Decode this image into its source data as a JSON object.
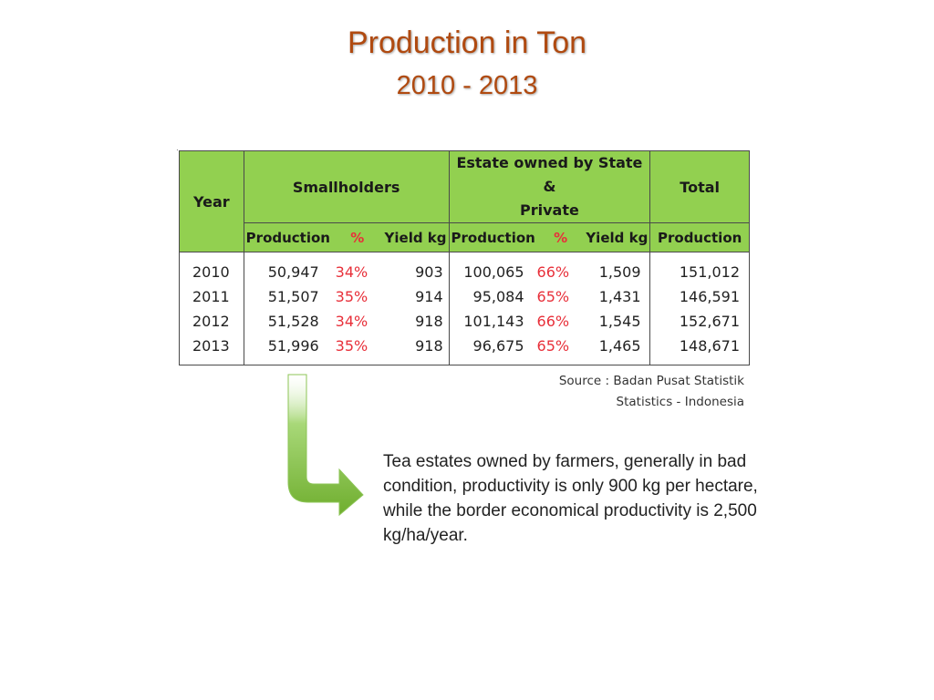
{
  "title": {
    "line1": "Production in Ton",
    "line2": "2010 - 2013"
  },
  "table": {
    "headers": {
      "year": "Year",
      "smallholders": "Smallholders",
      "estate_line1": "Estate owned by State &",
      "estate_line2": "Private",
      "total": "Total"
    },
    "subheaders": {
      "production": "Production",
      "percent": "%",
      "yield": "Yield kg"
    },
    "rows": [
      {
        "year": "2010",
        "s_prod": "50,947",
        "s_pct": "34%",
        "s_yield": "903",
        "e_prod": "100,065",
        "e_pct": "66%",
        "e_yield": "1,509",
        "total": "151,012"
      },
      {
        "year": "2011",
        "s_prod": "51,507",
        "s_pct": "35%",
        "s_yield": "914",
        "e_prod": "95,084",
        "e_pct": "65%",
        "e_yield": "1,431",
        "total": "146,591"
      },
      {
        "year": "2012",
        "s_prod": "51,528",
        "s_pct": "34%",
        "s_yield": "918",
        "e_prod": "101,143",
        "e_pct": "66%",
        "e_yield": "1,545",
        "total": "152,671"
      },
      {
        "year": "2013",
        "s_prod": "51,996",
        "s_pct": "35%",
        "s_yield": "918",
        "e_prod": "96,675",
        "e_pct": "65%",
        "e_yield": "1,465",
        "total": "148,671"
      }
    ]
  },
  "source": {
    "line1": "Source :  Badan Pusat Statistik",
    "line2": "Statistics - Indonesia"
  },
  "note": "Tea estates owned by farmers, generally in bad condition, productivity is only 900 kg per hectare, while the border economical productivity is  2,500 kg/ha/year.",
  "colors": {
    "header_green": "#92d050",
    "title": "#b04a10",
    "percent": "#e8303a",
    "arrow": "#6fae2e"
  }
}
